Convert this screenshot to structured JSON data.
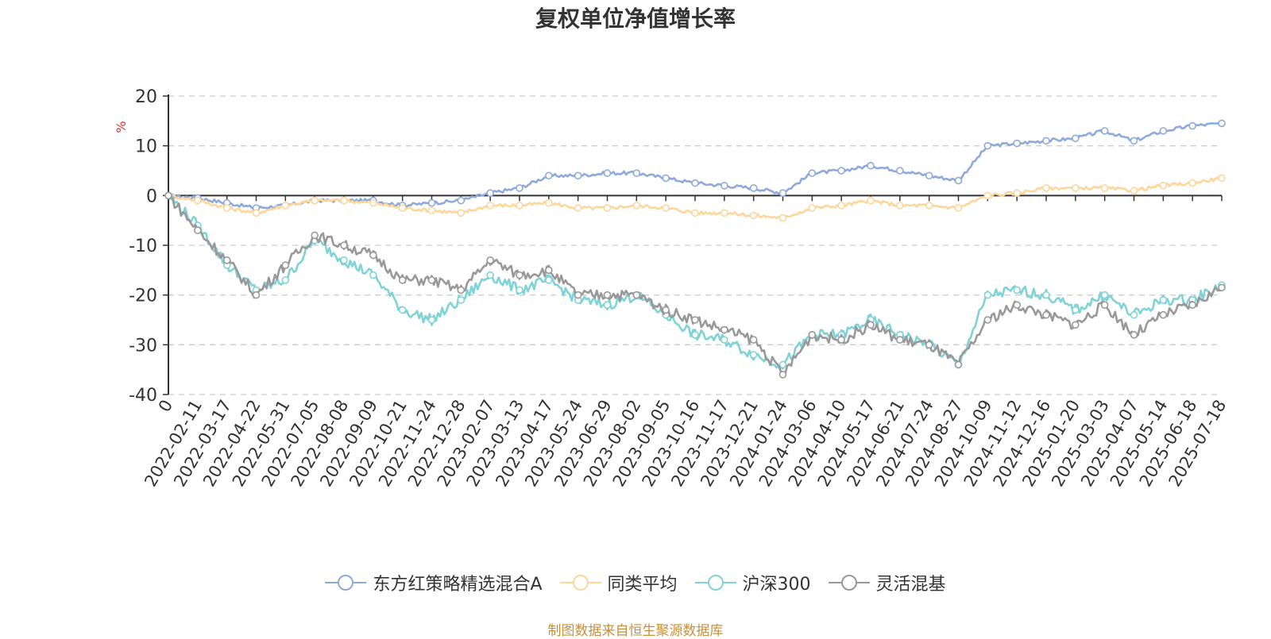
{
  "title": "复权单位净值增长率",
  "source_note": "制图数据来自恒生聚源数据库",
  "colors": {
    "fund": "#8eaadb",
    "peer_avg": "#fdd69a",
    "hs300": "#7fd3d6",
    "flex_mixed": "#999999",
    "ylabel": "#e03030",
    "source": "#c8903c"
  },
  "chart_data": {
    "type": "line",
    "title": "复权单位净值增长率",
    "ylabel": "%",
    "ylim": [
      -40,
      20
    ],
    "yticks": [
      20,
      10,
      0,
      -10,
      -20,
      -30,
      -40
    ],
    "grid": true,
    "legend_position": "bottom",
    "x_tick_labels": [
      "0",
      "2022-02-11",
      "2022-03-17",
      "2022-04-22",
      "2022-05-31",
      "2022-07-05",
      "2022-08-08",
      "2022-09-09",
      "2022-10-21",
      "2022-11-24",
      "2022-12-28",
      "2023-02-07",
      "2023-03-13",
      "2023-04-17",
      "2023-05-24",
      "2023-06-29",
      "2023-08-02",
      "2023-09-05",
      "2023-10-16",
      "2023-11-17",
      "2023-12-21",
      "2024-01-24",
      "2024-03-06",
      "2024-04-10",
      "2024-05-17",
      "2024-06-21",
      "2024-07-24",
      "2024-08-27",
      "2024-10-09",
      "2024-11-12",
      "2024-12-16",
      "2025-01-20",
      "2025-03-03",
      "2025-04-07",
      "2025-05-14",
      "2025-06-18",
      "2025-07-18"
    ],
    "series": [
      {
        "name": "东方红策略精选混合A",
        "color_key": "fund",
        "values": [
          0,
          -0.5,
          -1.5,
          -2.5,
          -2,
          -1,
          -1,
          -1,
          -2,
          -1.5,
          -1,
          0.5,
          1.5,
          4,
          4,
          4.5,
          4.5,
          3.5,
          2.5,
          2,
          1.5,
          0.5,
          4.5,
          5,
          6,
          5,
          4,
          3,
          10,
          10.5,
          11,
          11.5,
          13,
          11,
          13,
          14,
          14.5
        ]
      },
      {
        "name": "同类平均",
        "color_key": "peer_avg",
        "values": [
          0,
          -1,
          -2.5,
          -3.5,
          -2,
          -1,
          -1,
          -1.5,
          -2.5,
          -3,
          -3.5,
          -2,
          -2,
          -1.5,
          -2.5,
          -2.5,
          -2,
          -2.5,
          -3.5,
          -3.5,
          -4,
          -4.5,
          -2.5,
          -2,
          -1,
          -2,
          -2,
          -2.5,
          0,
          0.5,
          1.5,
          1.5,
          1.5,
          1,
          2,
          2.5,
          3.5
        ]
      },
      {
        "name": "沪深300",
        "color_key": "hs300",
        "values": [
          0,
          -6,
          -14,
          -19,
          -17,
          -9,
          -13,
          -16,
          -23,
          -25,
          -21,
          -16,
          -19,
          -17,
          -21,
          -22,
          -20,
          -24,
          -28,
          -29,
          -32,
          -34,
          -28,
          -28,
          -25,
          -28,
          -30,
          -34,
          -20,
          -19,
          -20,
          -23,
          -20,
          -24,
          -21,
          -21,
          -18
        ]
      },
      {
        "name": "灵活混基",
        "color_key": "flex_mixed",
        "values": [
          0,
          -7,
          -13,
          -20,
          -14,
          -8,
          -10,
          -12,
          -17,
          -17,
          -19,
          -13,
          -16,
          -15,
          -20,
          -20,
          -20,
          -23,
          -25,
          -27,
          -29,
          -36,
          -28,
          -29,
          -26,
          -29,
          -30,
          -34,
          -25,
          -22,
          -24,
          -26,
          -22,
          -28,
          -24,
          -22,
          -18.5
        ]
      }
    ]
  }
}
